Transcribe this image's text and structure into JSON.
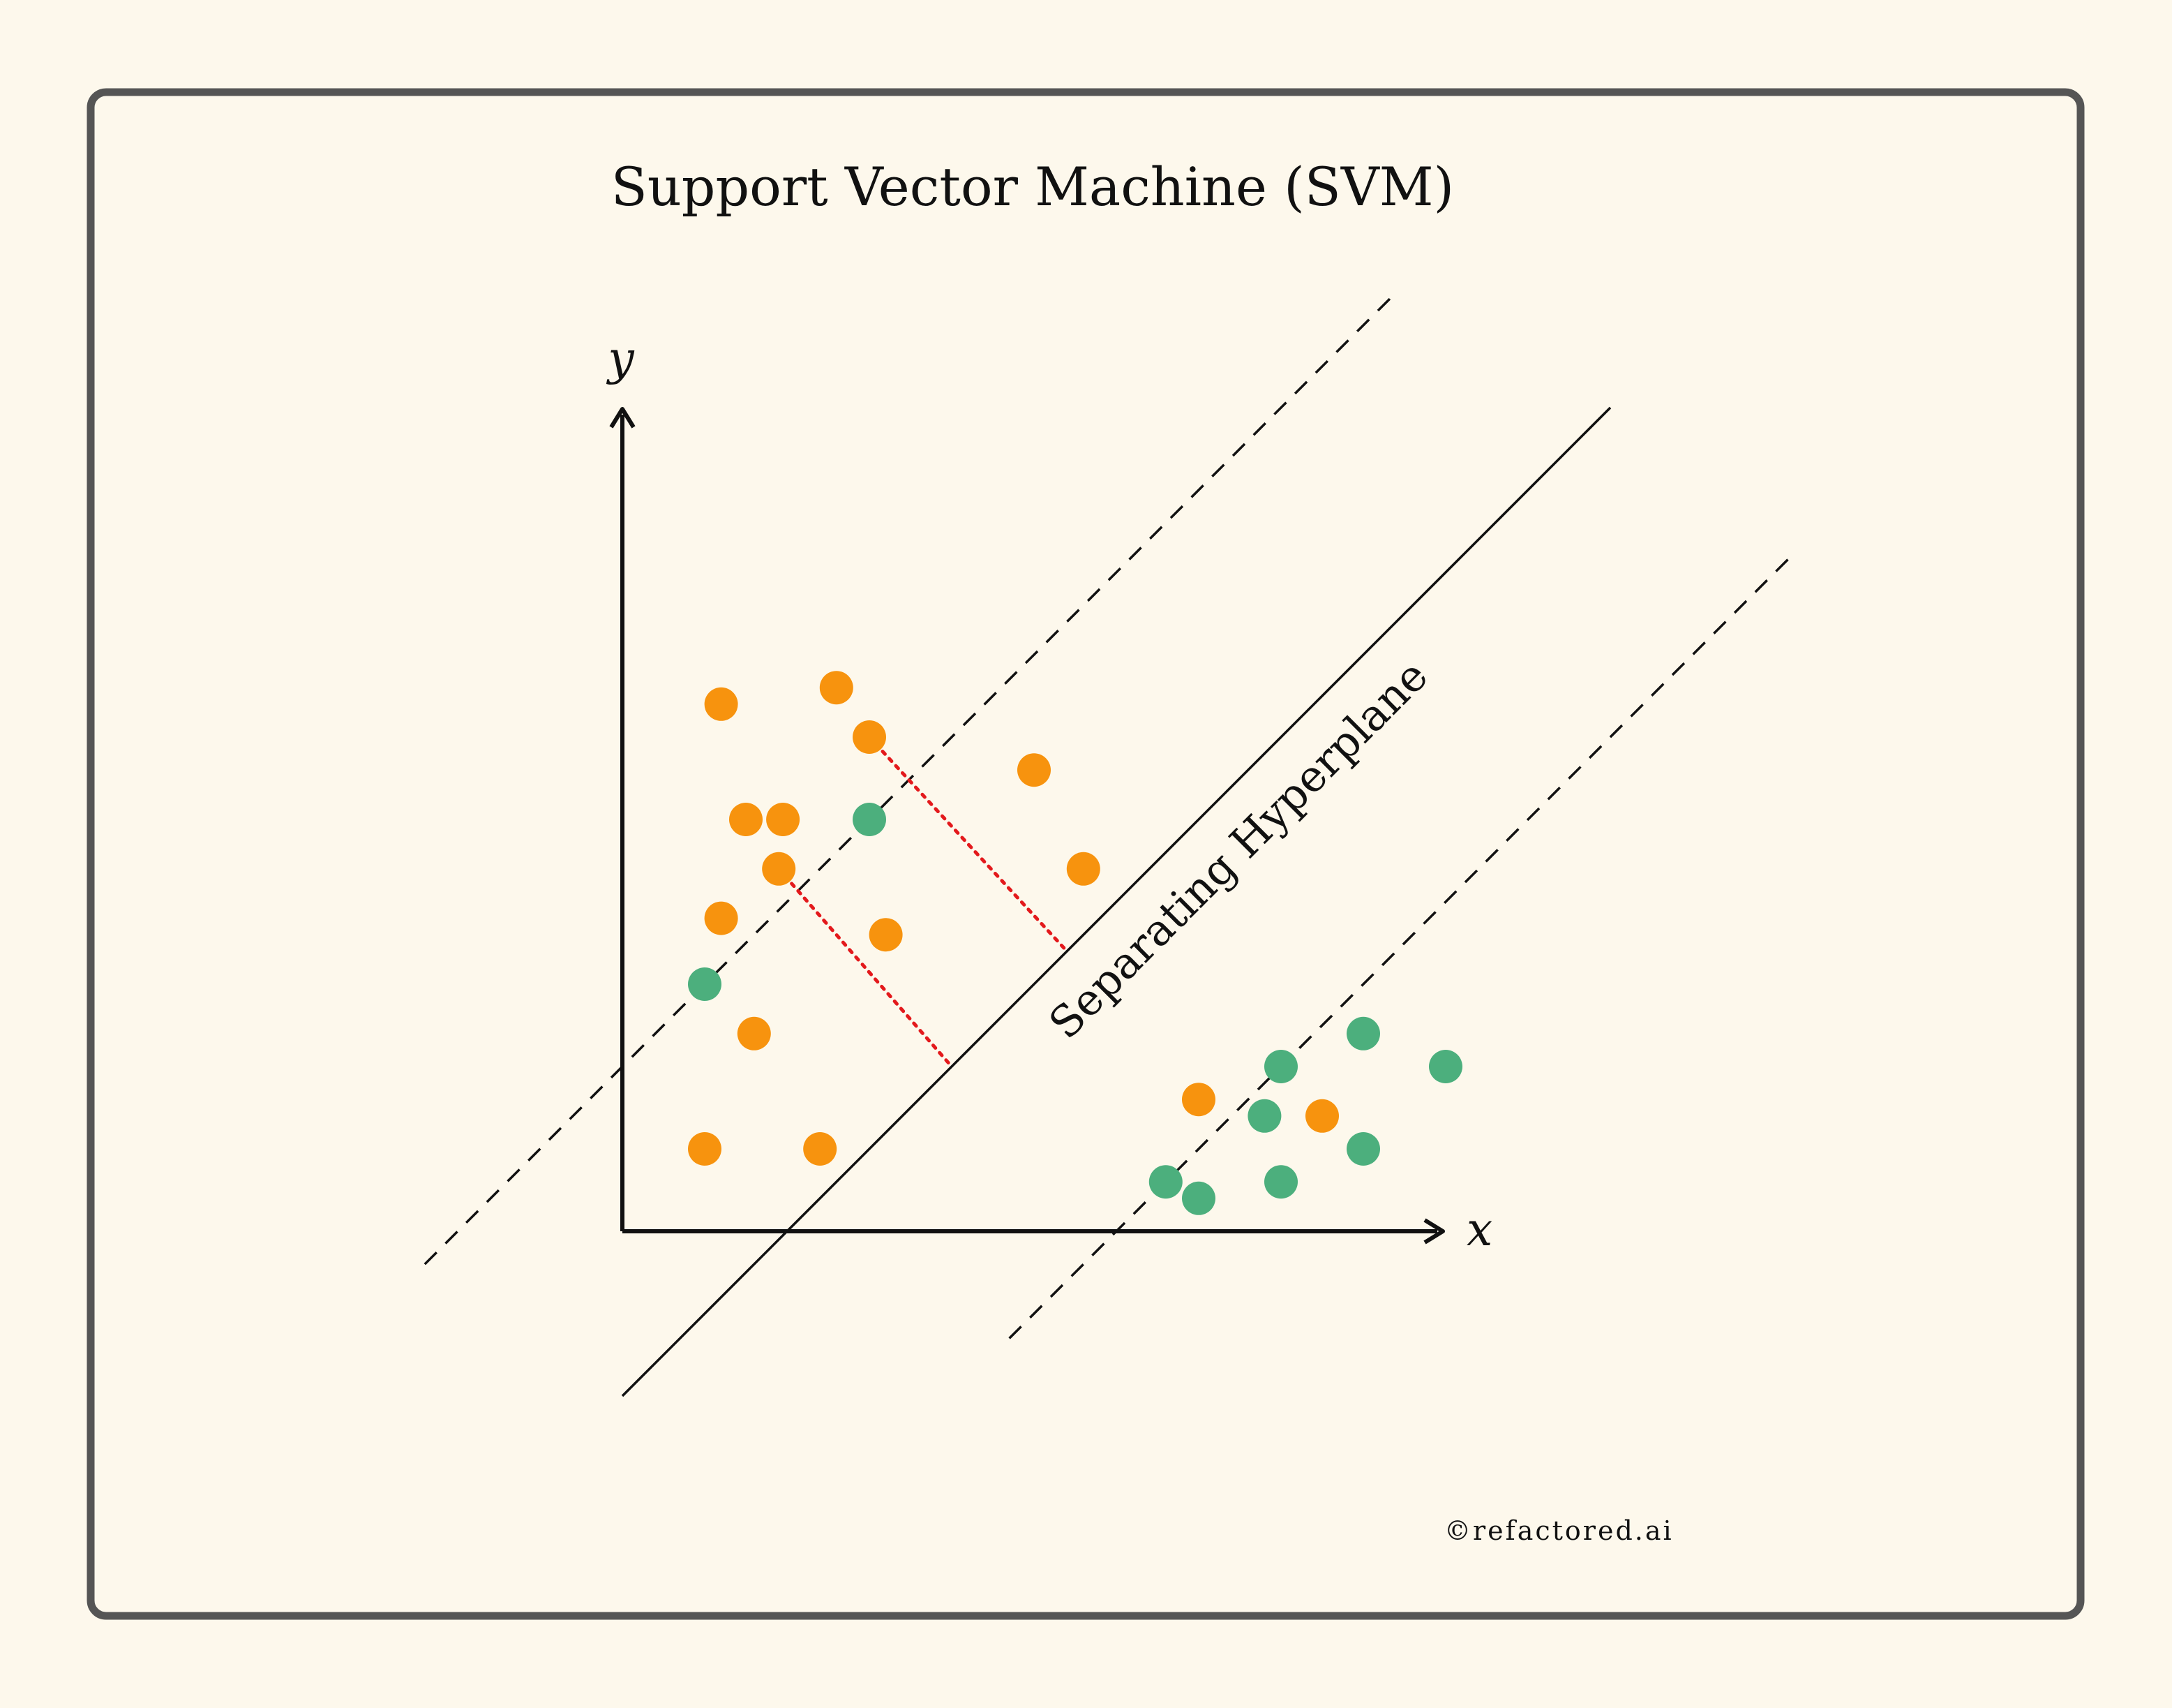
{
  "title": "Support Vector Machine (SVM)",
  "axes": {
    "x_label": "x",
    "y_label": "y"
  },
  "hyperplane_label": "Separating Hyperplane",
  "copyright": "©refactored.ai",
  "colors": {
    "background": "#fdf8ec",
    "frame": "#555555",
    "class_orange": "#f7930e",
    "class_green": "#4caf7d",
    "margin_connector": "#e3191c",
    "axis": "#111111"
  },
  "points": {
    "orange": [
      [
        1.2,
        6.4
      ],
      [
        2.6,
        6.6
      ],
      [
        3.0,
        6.0
      ],
      [
        5.0,
        5.6
      ],
      [
        1.5,
        5.0
      ],
      [
        1.95,
        5.0
      ],
      [
        1.9,
        4.4
      ],
      [
        5.6,
        4.4
      ],
      [
        1.2,
        3.8
      ],
      [
        3.2,
        3.6
      ],
      [
        1.6,
        2.4
      ],
      [
        1.0,
        1.0
      ],
      [
        2.4,
        1.0
      ],
      [
        7.0,
        1.6
      ],
      [
        8.5,
        1.4
      ]
    ],
    "green": [
      [
        3.0,
        5.0
      ],
      [
        1.0,
        3.0
      ],
      [
        9.0,
        2.4
      ],
      [
        10.0,
        2.0
      ],
      [
        8.0,
        2.0
      ],
      [
        7.8,
        1.4
      ],
      [
        9.0,
        1.0
      ],
      [
        6.6,
        0.6
      ],
      [
        7.0,
        0.4
      ],
      [
        8.0,
        0.6
      ]
    ]
  },
  "lines": {
    "hyperplane": {
      "slope": 1,
      "intercept": -2
    },
    "upper_margin": {
      "slope": 1,
      "intercept": 2
    },
    "lower_margin": {
      "slope": 1,
      "intercept": -6
    }
  },
  "support_connectors": [
    {
      "from": [
        3.0,
        6.0
      ],
      "to": [
        5.4,
        3.4
      ]
    },
    {
      "from": [
        1.9,
        4.4
      ],
      "to": [
        4.0,
        2.0
      ]
    }
  ]
}
